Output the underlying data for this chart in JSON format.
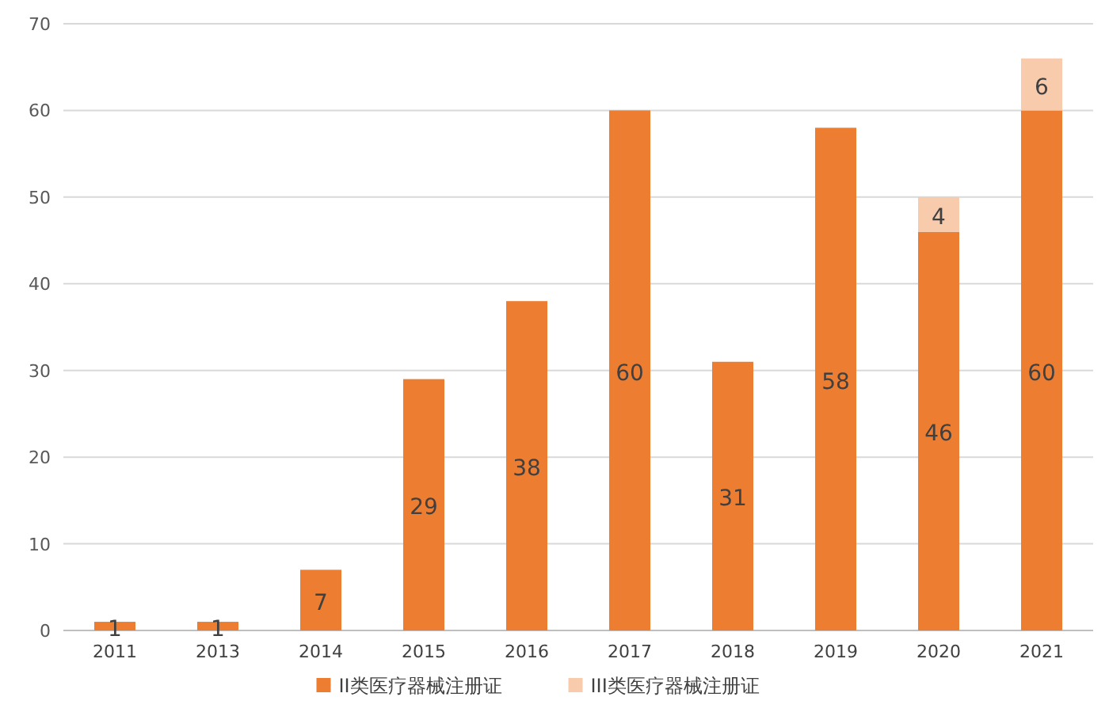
{
  "chart_data": {
    "type": "bar",
    "stacked": true,
    "categories": [
      "2011",
      "2013",
      "2014",
      "2015",
      "2016",
      "2017",
      "2018",
      "2019",
      "2020",
      "2021"
    ],
    "series": [
      {
        "name": "II类医疗器械注册证",
        "color": "#ed7d31",
        "values": [
          1,
          1,
          7,
          29,
          38,
          60,
          31,
          58,
          46,
          60
        ]
      },
      {
        "name": "III类医疗器械注册证",
        "color": "#f8cbad",
        "values": [
          null,
          null,
          null,
          null,
          null,
          null,
          null,
          null,
          4,
          6
        ]
      }
    ],
    "ylim": [
      0,
      70
    ],
    "yticks": [
      0,
      10,
      20,
      30,
      40,
      50,
      60,
      70
    ],
    "grid": "y",
    "legend": "bottom",
    "data_labels": true
  }
}
